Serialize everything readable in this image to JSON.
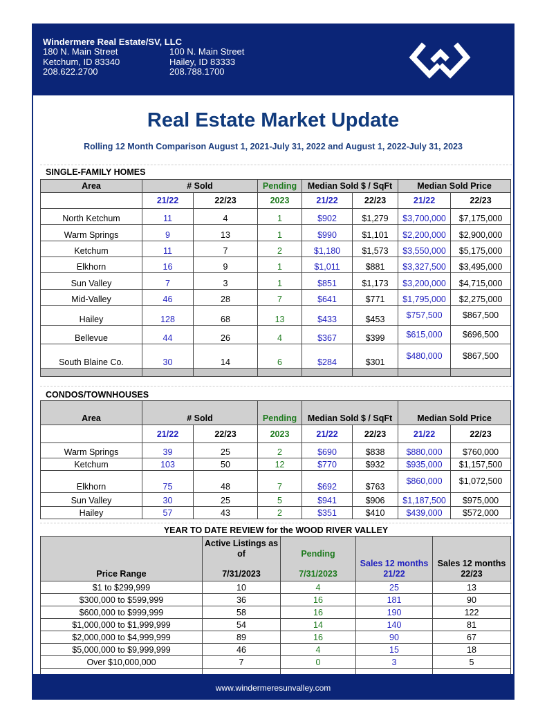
{
  "header": {
    "company": "Windermere Real Estate/SV, LLC",
    "offices": [
      {
        "street": "180 N. Main Street",
        "city": "Ketchum, ID  83340",
        "phone": "208.622.2700"
      },
      {
        "street": "100 N. Main Street",
        "city": "Hailey, ID 83333",
        "phone": "208.788.1700"
      }
    ],
    "logo": "windermere-w-logo"
  },
  "title": "Real Estate Market Update",
  "subtitle": "Rolling 12 Month Comparison August 1, 2021-July 31, 2022 and August 1, 2022-July 31, 2023",
  "colors": {
    "brand": "#0b2577",
    "blue_values": "#1f1fbf",
    "green_values": "#1d7a1d"
  },
  "headers": {
    "area": "Area",
    "sold": "# Sold",
    "pending": "Pending",
    "sqft": "Median Sold $ / SqFt",
    "price": "Median Sold Price",
    "p1": "21/22",
    "p2": "22/23",
    "year": "2023"
  },
  "sfh": {
    "label": "SINGLE-FAMILY HOMES",
    "rows": [
      [
        "North Ketchum",
        "11",
        "4",
        "1",
        "$902",
        "$1,279",
        "$3,700,000",
        "$7,175,000"
      ],
      [
        "Warm Springs",
        "9",
        "13",
        "1",
        "$990",
        "$1,101",
        "$2,200,000",
        "$2,900,000"
      ],
      [
        "Ketchum",
        "11",
        "7",
        "2",
        "$1,180",
        "$1,573",
        "$3,550,000",
        "$5,175,000"
      ],
      [
        "Elkhorn",
        "16",
        "9",
        "1",
        "$1,011",
        "$881",
        "$3,327,500",
        "$3,495,000"
      ],
      [
        "Sun Valley",
        "7",
        "3",
        "1",
        "$851",
        "$1,173",
        "$3,200,000",
        "$4,715,000"
      ],
      [
        "Mid-Valley",
        "46",
        "28",
        "7",
        "$641",
        "$771",
        "$1,795,000",
        "$2,275,000"
      ],
      [
        "Hailey",
        "128",
        "68",
        "13",
        "$433",
        "$453",
        "$757,500",
        "$867,500"
      ],
      [
        "Bellevue",
        "44",
        "26",
        "4",
        "$367",
        "$399",
        "$615,000",
        "$696,500"
      ],
      [
        "South Blaine Co.",
        "30",
        "14",
        "6",
        "$284",
        "$301",
        "$480,000",
        "$867,500"
      ]
    ]
  },
  "condo": {
    "label": "CONDOS/TOWNHOUSES",
    "rows": [
      [
        "Warm Springs",
        "39",
        "25",
        "2",
        "$690",
        "$838",
        "$880,000",
        "$760,000"
      ],
      [
        "Ketchum",
        "103",
        "50",
        "12",
        "$770",
        "$932",
        "$935,000",
        "$1,157,500"
      ],
      [
        "Elkhorn",
        "75",
        "48",
        "7",
        "$692",
        "$763",
        "$860,000",
        "$1,072,500"
      ],
      [
        "Sun Valley",
        "30",
        "25",
        "5",
        "$941",
        "$906",
        "$1,187,500",
        "$975,000"
      ],
      [
        "Hailey",
        "57",
        "43",
        "2",
        "$351",
        "$410",
        "$439,000",
        "$572,000"
      ]
    ]
  },
  "ytd": {
    "title": "YEAR TO DATE REVIEW for the WOOD RIVER VALLEY",
    "headers": {
      "range": "Price Range",
      "active1": "Active Listings as of",
      "active2": "7/31/2023",
      "pending1": "Pending",
      "pending2": "7/31/2023",
      "s1a": "Sales 12 months",
      "s1b": "21/22",
      "s2a": "Sales 12 months",
      "s2b": "22/23"
    },
    "rows": [
      [
        "$1 to $299,999",
        "10",
        "4",
        "25",
        "13"
      ],
      [
        "$300,000 to $599,999",
        "36",
        "16",
        "181",
        "90"
      ],
      [
        "$600,000 to $999,999",
        "58",
        "16",
        "190",
        "122"
      ],
      [
        "$1,000,000 to $1,999,999",
        "54",
        "14",
        "140",
        "81"
      ],
      [
        "$2,000,000 to $4,999,999",
        "89",
        "16",
        "90",
        "67"
      ],
      [
        "$5,000,000 to $9,999,999",
        "46",
        "4",
        "15",
        "18"
      ],
      [
        "Over $10,000,000",
        "7",
        "0",
        "3",
        "5"
      ]
    ]
  },
  "footer": {
    "url": "www.windermeresunvalley.com"
  }
}
